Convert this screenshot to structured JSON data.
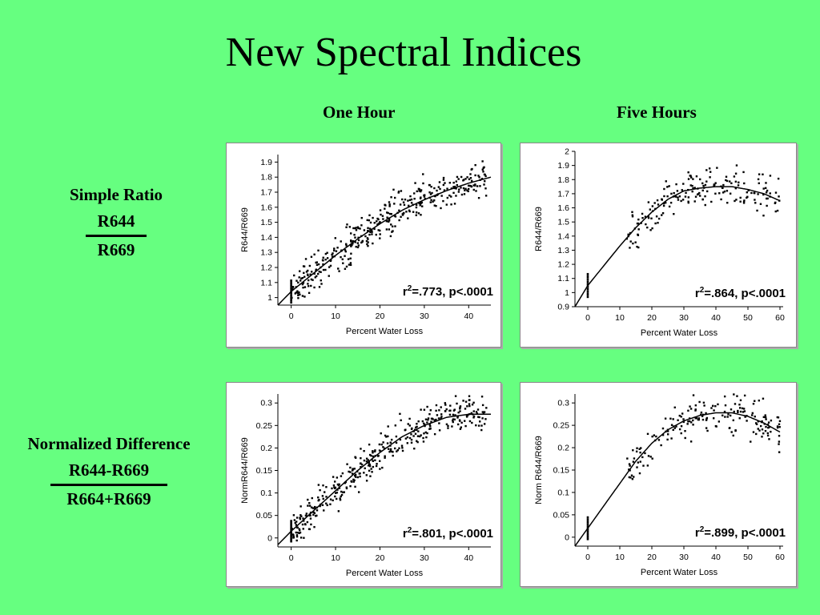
{
  "slide": {
    "title": "New Spectral Indices",
    "columns": [
      "One Hour",
      "Five Hours"
    ],
    "rows": [
      {
        "label": "Simple Ratio",
        "numerator": "R644",
        "denominator": "R669"
      },
      {
        "label": "Normalized Difference",
        "numerator": "R644-R669",
        "denominator": "R664+R669"
      }
    ]
  },
  "colors": {
    "background": "#66ff80",
    "points": "#000000",
    "curve": "#000000"
  },
  "chart_data": [
    {
      "type": "scatter",
      "title": "",
      "xlabel": "Percent Water Loss",
      "ylabel": "R644/R669",
      "xlim": [
        -3,
        45
      ],
      "ylim": [
        0.95,
        1.95
      ],
      "xticks": [
        0,
        10,
        20,
        30,
        40
      ],
      "yticks": [
        1,
        1.1,
        1.2,
        1.3,
        1.4,
        1.5,
        1.6,
        1.7,
        1.8,
        1.9
      ],
      "annotation": {
        "r2": ".773",
        "p": "p<.0001"
      },
      "fit_curve": {
        "x": [
          -3,
          0,
          5,
          10,
          15,
          20,
          25,
          30,
          35,
          40,
          45
        ],
        "y": [
          0.95,
          1.04,
          1.16,
          1.28,
          1.39,
          1.49,
          1.58,
          1.65,
          1.71,
          1.76,
          1.8
        ]
      },
      "cloud": {
        "seed": 11,
        "n": 380,
        "xmin": 0,
        "xmax": 44,
        "noise": 0.09,
        "ymax": 1.93
      }
    },
    {
      "type": "scatter",
      "title": "",
      "xlabel": "Percent Water Loss",
      "ylabel": "R644/R669",
      "xlim": [
        -4,
        61
      ],
      "ylim": [
        0.9,
        2.0
      ],
      "xticks": [
        0,
        10,
        20,
        30,
        40,
        50,
        60
      ],
      "yticks": [
        0.9,
        1,
        1.1,
        1.2,
        1.3,
        1.4,
        1.5,
        1.6,
        1.7,
        1.8,
        1.9,
        2
      ],
      "annotation": {
        "r2": ".864",
        "p": "p<.0001"
      },
      "fit_curve": {
        "x": [
          -4,
          0,
          5,
          10,
          15,
          20,
          25,
          30,
          35,
          40,
          45,
          50,
          55,
          60
        ],
        "y": [
          0.9,
          1.05,
          1.19,
          1.33,
          1.46,
          1.57,
          1.66,
          1.72,
          1.74,
          1.75,
          1.75,
          1.73,
          1.7,
          1.65
        ]
      },
      "cloud": {
        "seed": 23,
        "n": 190,
        "xmin": 12,
        "xmax": 60,
        "noise": 0.1,
        "ymax": 1.96
      }
    },
    {
      "type": "scatter",
      "title": "",
      "xlabel": "Percent Water Loss",
      "ylabel": "NormR644/R669",
      "xlim": [
        -3,
        45
      ],
      "ylim": [
        -0.02,
        0.32
      ],
      "xticks": [
        0,
        10,
        20,
        30,
        40
      ],
      "yticks": [
        0,
        0.05,
        0.1,
        0.15,
        0.2,
        0.25,
        0.3
      ],
      "annotation": {
        "r2": ".801",
        "p": "p<.0001"
      },
      "fit_curve": {
        "x": [
          -3,
          0,
          5,
          10,
          15,
          20,
          25,
          30,
          35,
          40,
          45
        ],
        "y": [
          -0.015,
          0.015,
          0.06,
          0.105,
          0.15,
          0.19,
          0.225,
          0.25,
          0.268,
          0.275,
          0.275
        ]
      },
      "cloud": {
        "seed": 37,
        "n": 380,
        "xmin": 0,
        "xmax": 44,
        "noise": 0.028,
        "ymax": 0.32
      }
    },
    {
      "type": "scatter",
      "title": "",
      "xlabel": "Percent Water Loss",
      "ylabel": "Norm R644/R669",
      "xlim": [
        -4,
        61
      ],
      "ylim": [
        -0.02,
        0.32
      ],
      "xticks": [
        0,
        10,
        20,
        30,
        40,
        50,
        60
      ],
      "yticks": [
        0,
        0.05,
        0.1,
        0.15,
        0.2,
        0.25,
        0.3
      ],
      "annotation": {
        "r2": ".899",
        "p": "p<.0001"
      },
      "fit_curve": {
        "x": [
          -4,
          0,
          5,
          10,
          15,
          20,
          25,
          30,
          35,
          40,
          45,
          50,
          55,
          60
        ],
        "y": [
          -0.02,
          0.02,
          0.07,
          0.12,
          0.17,
          0.21,
          0.24,
          0.26,
          0.272,
          0.278,
          0.278,
          0.27,
          0.255,
          0.235
        ]
      },
      "cloud": {
        "seed": 51,
        "n": 190,
        "xmin": 12,
        "xmax": 60,
        "noise": 0.03,
        "ymax": 0.32
      }
    }
  ]
}
